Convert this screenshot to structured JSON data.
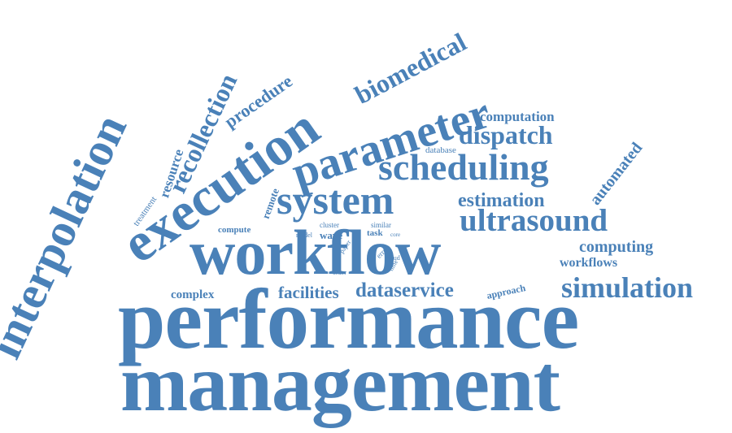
{
  "style": {
    "word_color": "#4a81b8",
    "background": "#ffffff"
  },
  "words": {
    "performance": "performance",
    "management": "management",
    "workflow": "workflow",
    "interpolation": "interpolation",
    "execution": "execution",
    "parameter": "parameter",
    "system": "system",
    "scheduling": "scheduling",
    "ultrasound": "ultrasound",
    "simulation": "simulation",
    "biomedical": "biomedical",
    "dispatch": "dispatch",
    "dataservice": "dataservice",
    "facilities": "facilities",
    "recollection": "recollection",
    "estimation": "estimation",
    "procedure": "procedure",
    "computing": "computing",
    "automated": "automated",
    "workflows": "workflows",
    "computation": "computation",
    "resource": "resource",
    "complex": "complex",
    "remote": "remote",
    "approach": "approach",
    "database": "database",
    "compute": "compute",
    "treatment": "treatment",
    "wave": "wave",
    "task": "task",
    "cluster": "cluster",
    "similar": "similar",
    "model": "model",
    "core": "core",
    "paper": "paper",
    "error": "error",
    "cloud": "cloud",
    "order": "order",
    "time": "time"
  }
}
